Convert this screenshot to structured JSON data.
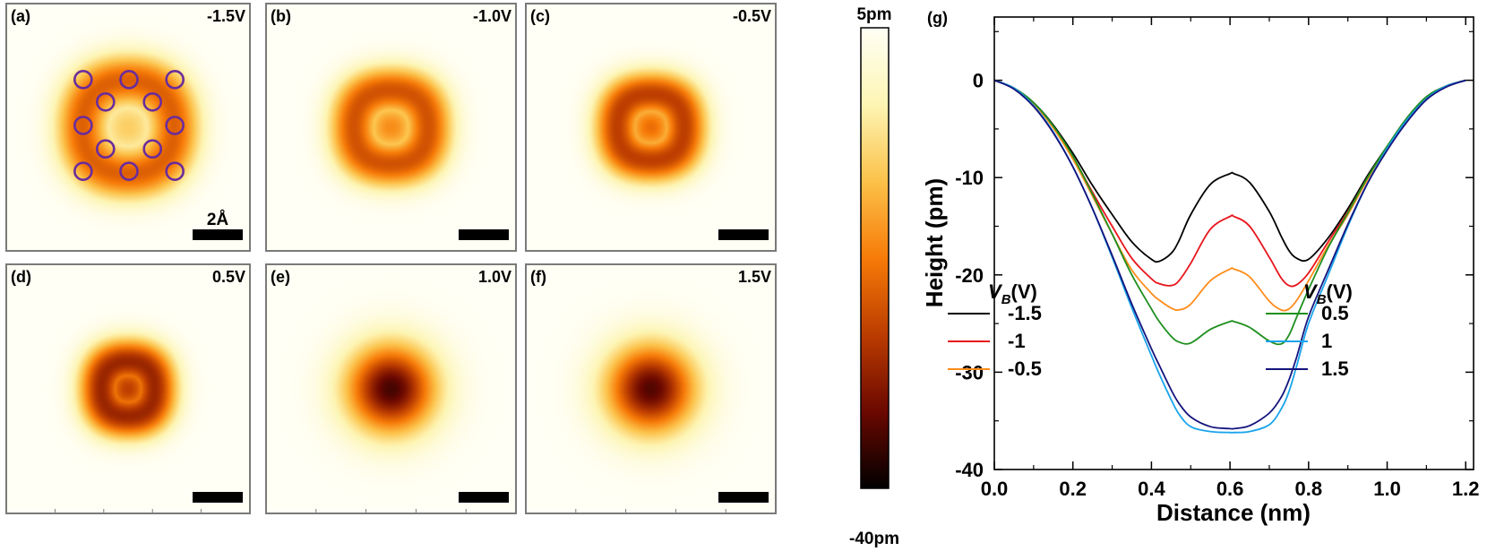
{
  "colorbar": {
    "max_label": "5pm",
    "min_label": "-40pm",
    "stops": [
      "#000000",
      "#6b0800",
      "#bb3c00",
      "#f77b08",
      "#fcc24a",
      "#fdf5b4",
      "#fffff5"
    ]
  },
  "maps": [
    {
      "letter": "(a)",
      "voltage": "-1.5V",
      "ring_radius": 0.38,
      "center_depth": 0.32,
      "ring_depth": 0.62,
      "sigma": 0.22,
      "squareness": 0.25,
      "show_atoms": true,
      "scale_label": "2Å"
    },
    {
      "letter": "(b)",
      "voltage": "-1.0V",
      "ring_radius": 0.3,
      "center_depth": 0.5,
      "ring_depth": 0.66,
      "sigma": 0.2,
      "squareness": 0.35,
      "show_atoms": false,
      "scale_label": ""
    },
    {
      "letter": "(c)",
      "voltage": "-0.5V",
      "ring_radius": 0.27,
      "center_depth": 0.58,
      "ring_depth": 0.72,
      "sigma": 0.19,
      "squareness": 0.4,
      "show_atoms": false,
      "scale_label": ""
    },
    {
      "letter": "(d)",
      "voltage": "0.5V",
      "ring_radius": 0.22,
      "center_depth": 0.72,
      "ring_depth": 0.8,
      "sigma": 0.19,
      "squareness": 0.35,
      "show_atoms": false,
      "scale_label": ""
    },
    {
      "letter": "(e)",
      "voltage": "1.0V",
      "ring_radius": 0.0,
      "center_depth": 0.97,
      "ring_depth": 0.97,
      "sigma": 0.36,
      "squareness": 0.0,
      "show_atoms": false,
      "scale_label": ""
    },
    {
      "letter": "(f)",
      "voltage": "1.5V",
      "ring_radius": 0.0,
      "center_depth": 0.95,
      "ring_depth": 0.95,
      "sigma": 0.36,
      "squareness": 0.0,
      "show_atoms": false,
      "scale_label": ""
    }
  ],
  "atoms_panel_a": {
    "color": "#6a2c9c",
    "positions_fractional": [
      [
        -0.41,
        -0.41
      ],
      [
        0.0,
        -0.41
      ],
      [
        0.41,
        -0.41
      ],
      [
        -0.21,
        -0.21
      ],
      [
        0.21,
        -0.21
      ],
      [
        -0.21,
        0.21
      ],
      [
        0.21,
        0.21
      ],
      [
        -0.41,
        0.0
      ],
      [
        0.41,
        0.0
      ],
      [
        -0.41,
        0.41
      ],
      [
        0.0,
        0.41
      ],
      [
        0.41,
        0.41
      ]
    ]
  },
  "chart_data": {
    "type": "line",
    "panel_label": "(g)",
    "xlabel": "Distance (nm)",
    "ylabel": "Height (pm)",
    "xlim": [
      0.0,
      1.22
    ],
    "ylim": [
      -40,
      6.5
    ],
    "xticks": [
      0.0,
      0.2,
      0.4,
      0.6,
      0.8,
      1.0,
      1.2
    ],
    "xtick_labels": [
      "0.0",
      "0.2",
      "0.4",
      "0.6",
      "0.8",
      "1.0",
      "1.2"
    ],
    "yticks": [
      0,
      -10,
      -20,
      -30,
      -40
    ],
    "ytick_labels": [
      "0",
      "-10",
      "-20",
      "-30",
      "-40"
    ],
    "legend_title": {
      "main": "V",
      "sub": "B",
      "unit": "(V)"
    },
    "legends": [
      {
        "placement": "left",
        "series_indices": [
          0,
          1,
          2
        ]
      },
      {
        "placement": "right",
        "series_indices": [
          3,
          4,
          5
        ]
      }
    ],
    "x": [
      0.0,
      0.05,
      0.1,
      0.15,
      0.2,
      0.25,
      0.3,
      0.35,
      0.4,
      0.42,
      0.45,
      0.47,
      0.5,
      0.55,
      0.6,
      0.61,
      0.65,
      0.7,
      0.73,
      0.75,
      0.77,
      0.8,
      0.85,
      0.9,
      0.95,
      1.0,
      1.05,
      1.1,
      1.15,
      1.2
    ],
    "series": [
      {
        "name": "-1.5",
        "color": "#000000",
        "values": [
          0,
          -0.8,
          -2.3,
          -4.6,
          -7.5,
          -10.8,
          -13.8,
          -16.6,
          -18.4,
          -18.6,
          -17.8,
          -16.5,
          -13.8,
          -10.7,
          -9.6,
          -9.6,
          -10.5,
          -13.5,
          -16.0,
          -17.5,
          -18.3,
          -18.4,
          -16.2,
          -13.2,
          -9.8,
          -6.8,
          -3.9,
          -1.7,
          -0.6,
          0
        ]
      },
      {
        "name": "-1",
        "color": "#e8141b",
        "values": [
          0,
          -0.8,
          -2.4,
          -4.8,
          -7.9,
          -11.5,
          -15.0,
          -18.3,
          -20.4,
          -20.9,
          -21.1,
          -20.6,
          -18.8,
          -15.3,
          -14.0,
          -14.0,
          -15.0,
          -18.2,
          -20.3,
          -21.1,
          -21.0,
          -19.8,
          -16.6,
          -13.5,
          -10.0,
          -7.0,
          -4.0,
          -1.8,
          -0.6,
          0
        ]
      },
      {
        "name": "-0.5",
        "color": "#ff8c1a",
        "values": [
          0,
          -0.8,
          -2.4,
          -4.9,
          -8.1,
          -11.9,
          -15.8,
          -19.5,
          -21.9,
          -22.6,
          -23.4,
          -23.6,
          -23.0,
          -20.6,
          -19.4,
          -19.4,
          -20.2,
          -22.7,
          -23.6,
          -23.5,
          -22.6,
          -20.6,
          -17.0,
          -13.8,
          -10.2,
          -7.1,
          -4.1,
          -1.8,
          -0.6,
          0
        ]
      },
      {
        "name": "0.5",
        "color": "#1f8f1f",
        "values": [
          0,
          -0.8,
          -2.3,
          -4.7,
          -7.8,
          -11.7,
          -15.8,
          -20.0,
          -23.5,
          -24.8,
          -26.3,
          -26.9,
          -27.0,
          -25.6,
          -24.8,
          -24.8,
          -25.4,
          -26.8,
          -27.1,
          -26.2,
          -24.3,
          -21.5,
          -17.2,
          -13.6,
          -10.0,
          -6.8,
          -3.9,
          -1.7,
          -0.6,
          0
        ]
      },
      {
        "name": "1",
        "color": "#19a4ec",
        "values": [
          0,
          -0.8,
          -2.6,
          -5.3,
          -8.9,
          -13.2,
          -18.2,
          -23.4,
          -28.3,
          -30.2,
          -32.8,
          -34.3,
          -35.6,
          -36.1,
          -36.2,
          -36.2,
          -36.1,
          -35.4,
          -33.8,
          -32.0,
          -29.3,
          -25.0,
          -20.0,
          -15.0,
          -10.6,
          -7.0,
          -4.1,
          -1.9,
          -0.6,
          0
        ]
      },
      {
        "name": "1.5",
        "color": "#14147e",
        "values": [
          0,
          -0.9,
          -2.7,
          -5.4,
          -8.9,
          -13.2,
          -18.0,
          -23.0,
          -27.6,
          -29.3,
          -31.8,
          -33.2,
          -34.6,
          -35.6,
          -35.8,
          -35.8,
          -35.5,
          -34.2,
          -32.6,
          -30.8,
          -28.4,
          -24.3,
          -19.5,
          -14.8,
          -10.6,
          -7.2,
          -4.3,
          -2.0,
          -0.7,
          0
        ]
      }
    ]
  }
}
